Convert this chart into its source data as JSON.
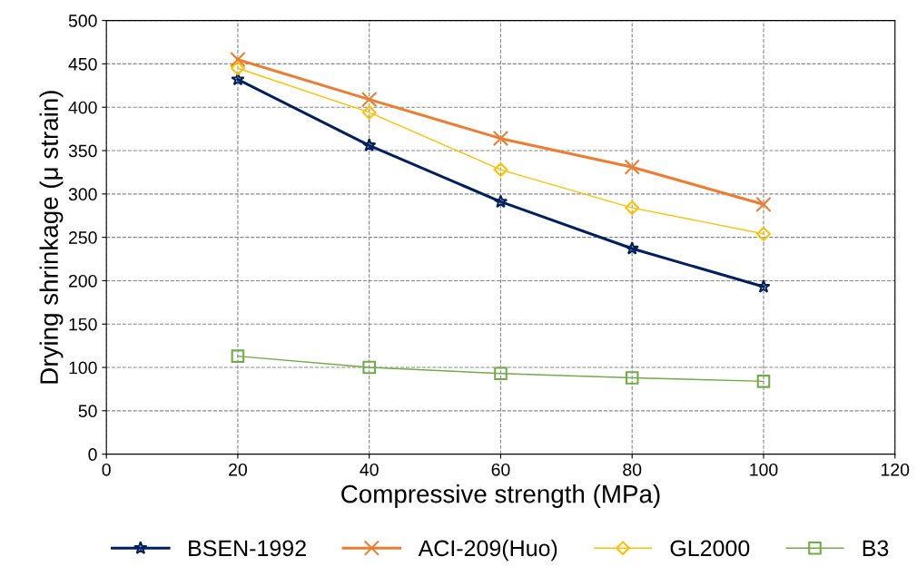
{
  "chart_data": {
    "type": "line",
    "xlabel": "Compressive strength (MPa)",
    "ylabel": "Drying shrinkage (μ strain)",
    "x": [
      20,
      40,
      60,
      80,
      100
    ],
    "series": [
      {
        "name": "BSEN-1992",
        "color": "#002060",
        "marker": "star",
        "values": [
          432,
          356,
          291,
          237,
          193
        ]
      },
      {
        "name": "ACI-209(Huo)",
        "color": "#ed7d31",
        "marker": "cross",
        "values": [
          455,
          409,
          364,
          331,
          288
        ]
      },
      {
        "name": "GL2000",
        "color": "#ffc000",
        "marker": "diamond",
        "values": [
          445,
          394,
          328,
          284,
          254
        ]
      },
      {
        "name": "B3",
        "color": "#70ad47",
        "marker": "square",
        "values": [
          113,
          100,
          93,
          88,
          84
        ]
      }
    ],
    "xlim": [
      0,
      120
    ],
    "xticks": [
      0,
      20,
      40,
      60,
      80,
      100,
      120
    ],
    "ylim": [
      0,
      500
    ],
    "yticks": [
      0,
      50,
      100,
      150,
      200,
      250,
      300,
      350,
      400,
      450,
      500
    ],
    "grid": true,
    "legend": "bottom",
    "line_style": "solid"
  }
}
